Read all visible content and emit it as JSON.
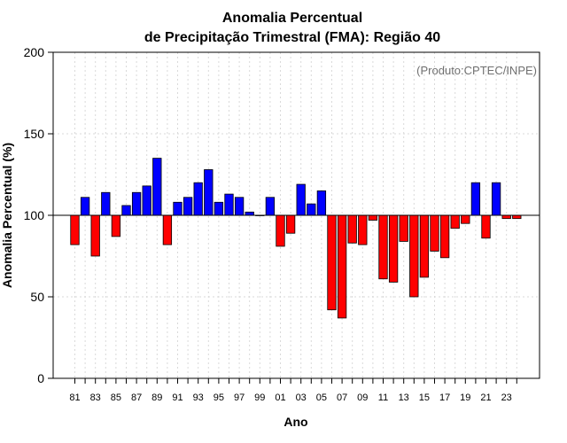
{
  "chart_data": {
    "type": "bar",
    "title_line1": "Anomalia Percentual",
    "title_line2": "de Precipitação Trimestral (FMA): Região 40",
    "xlabel": "Ano",
    "ylabel": "Anomalia Percentual (%)",
    "credit": "(Produto:CPTEC/INPE)",
    "ylim": [
      0,
      200
    ],
    "yticks": [
      0,
      50,
      100,
      150,
      200
    ],
    "baseline": 100,
    "grid": true,
    "years": [
      "81",
      "82",
      "83",
      "84",
      "85",
      "86",
      "87",
      "88",
      "89",
      "90",
      "91",
      "92",
      "93",
      "94",
      "95",
      "96",
      "97",
      "98",
      "99",
      "00",
      "01",
      "02",
      "03",
      "04",
      "05",
      "06",
      "07",
      "08",
      "09",
      "10",
      "11",
      "12",
      "13",
      "14",
      "15",
      "16",
      "17",
      "18",
      "19",
      "20",
      "21",
      "22",
      "23",
      "24"
    ],
    "xtick_labels": [
      "81",
      "83",
      "85",
      "87",
      "89",
      "91",
      "93",
      "95",
      "97",
      "99",
      "01",
      "03",
      "05",
      "07",
      "09",
      "11",
      "13",
      "15",
      "17",
      "19",
      "21",
      "23"
    ],
    "values": [
      82,
      111,
      75,
      114,
      87,
      106,
      114,
      118,
      135,
      82,
      108,
      111,
      120,
      128,
      108,
      113,
      111,
      102,
      100,
      111,
      81,
      89,
      119,
      107,
      115,
      42,
      37,
      83,
      82,
      97,
      61,
      59,
      84,
      50,
      62,
      78,
      74,
      92,
      95,
      120,
      86,
      120,
      98,
      98
    ],
    "colors": {
      "above": "#0000ff",
      "below": "#ff0000",
      "outline": "#000000",
      "grid": "#d9d9d9"
    }
  }
}
